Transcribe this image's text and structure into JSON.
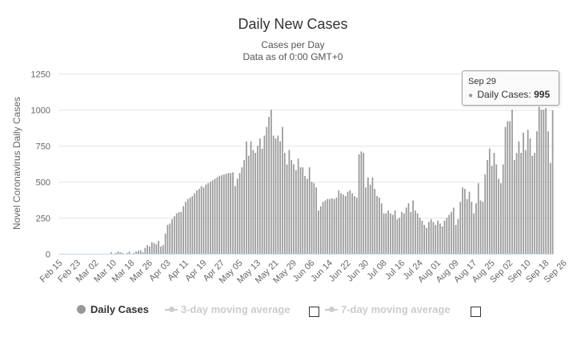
{
  "chart_data": {
    "type": "bar",
    "title": "Daily New Cases",
    "subtitle_1": "Cases per Day",
    "subtitle_2": "Data as of 0:00 GMT+0",
    "ylabel": "Novel Coronavirus Daily Cases",
    "xlabel": "",
    "ylim": [
      0,
      1250
    ],
    "y_ticks": [
      0,
      250,
      500,
      750,
      1000,
      1250
    ],
    "x_ticks": [
      "Feb 15",
      "Feb 23",
      "Mar 02",
      "Mar 10",
      "Mar 18",
      "Mar 26",
      "Apr 03",
      "Apr 11",
      "Apr 19",
      "Apr 27",
      "May 05",
      "May 13",
      "May 21",
      "May 29",
      "Jun 06",
      "Jun 14",
      "Jun 22",
      "Jun 30",
      "Jul 08",
      "Jul 16",
      "Jul 24",
      "Aug 01",
      "Aug 09",
      "Aug 17",
      "Aug 25",
      "Sep 02",
      "Sep 10",
      "Sep 18",
      "Sep 26"
    ],
    "start_date": "Feb 15",
    "series": [
      {
        "name": "Daily Cases",
        "color": "#999999",
        "values": [
          0,
          0,
          0,
          0,
          0,
          0,
          0,
          0,
          0,
          0,
          0,
          0,
          0,
          0,
          0,
          0,
          0,
          0,
          0,
          0,
          0,
          0,
          0,
          10,
          0,
          5,
          15,
          10,
          5,
          0,
          5,
          15,
          0,
          5,
          15,
          20,
          25,
          10,
          40,
          60,
          50,
          80,
          75,
          65,
          90,
          50,
          60,
          140,
          200,
          210,
          240,
          260,
          280,
          290,
          290,
          330,
          360,
          380,
          390,
          400,
          420,
          440,
          450,
          470,
          460,
          480,
          490,
          500,
          510,
          520,
          530,
          540,
          545,
          550,
          555,
          560,
          560,
          565,
          470,
          520,
          560,
          600,
          650,
          780,
          680,
          780,
          720,
          700,
          750,
          800,
          730,
          820,
          880,
          950,
          1000,
          820,
          800,
          820,
          780,
          880,
          700,
          620,
          720,
          650,
          620,
          580,
          660,
          600,
          600,
          540,
          520,
          600,
          500,
          490,
          460,
          300,
          330,
          360,
          370,
          380,
          380,
          385,
          380,
          390,
          440,
          420,
          410,
          400,
          430,
          440,
          420,
          400,
          390,
          690,
          710,
          700,
          460,
          530,
          480,
          530,
          450,
          400,
          390,
          350,
          280,
          280,
          300,
          280,
          270,
          300,
          240,
          250,
          290,
          280,
          320,
          350,
          290,
          370,
          300,
          280,
          250,
          230,
          200,
          180,
          220,
          240,
          220,
          200,
          230,
          210,
          190,
          230,
          250,
          270,
          290,
          320,
          200,
          240,
          360,
          460,
          450,
          380,
          430,
          360,
          280,
          350,
          490,
          370,
          360,
          550,
          650,
          730,
          610,
          700,
          620,
          520,
          490,
          620,
          880,
          920,
          920,
          1000,
          650,
          700,
          780,
          700,
          840,
          720,
          860,
          800,
          680,
          700,
          850,
          1020,
          1000,
          1000,
          1010,
          850,
          630,
          995
        ]
      },
      {
        "name": "3-day moving average",
        "visible": false
      },
      {
        "name": "7-day moving average",
        "visible": false
      }
    ]
  },
  "tooltip": {
    "date": "Sep 29",
    "label": "Daily Cases:",
    "value": "995"
  },
  "legend": {
    "items": [
      "Daily Cases",
      "3-day moving average",
      "7-day moving average"
    ]
  }
}
